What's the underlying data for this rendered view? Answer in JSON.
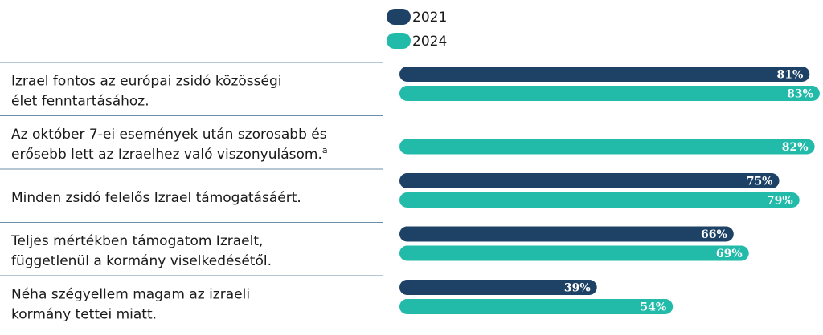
{
  "chart_data": {
    "type": "barh",
    "categories": [
      [
        "Izrael fontos az európai zsidó közösségi",
        "élet fenntartásához."
      ],
      [
        "Az október 7-ei események után szorosabb és",
        "erősebb lett az Izraelhez való viszonyulásom."
      ],
      [
        "Minden zsidó felelős Izrael támogatásáért."
      ],
      [
        "Teljes mértékben támogatom Izraelt,",
        "függetlenül a kormány viselkedésétől."
      ],
      [
        "Néha szégyellem magam az izraeli",
        "kormány tettei miatt."
      ]
    ],
    "category_superscripts": [
      null,
      "a",
      null,
      null,
      null
    ],
    "series": [
      {
        "name": "2021",
        "color": "#1d4266",
        "values": [
          81,
          null,
          75,
          66,
          39
        ],
        "value_labels": [
          "81%",
          null,
          "75%",
          "66%",
          "39%"
        ]
      },
      {
        "name": "2024",
        "color": "#22bba9",
        "values": [
          83,
          82,
          79,
          69,
          54
        ],
        "value_labels": [
          "83%",
          "82%",
          "79%",
          "69%",
          "54%"
        ]
      }
    ],
    "xlim": [
      0,
      100
    ]
  }
}
